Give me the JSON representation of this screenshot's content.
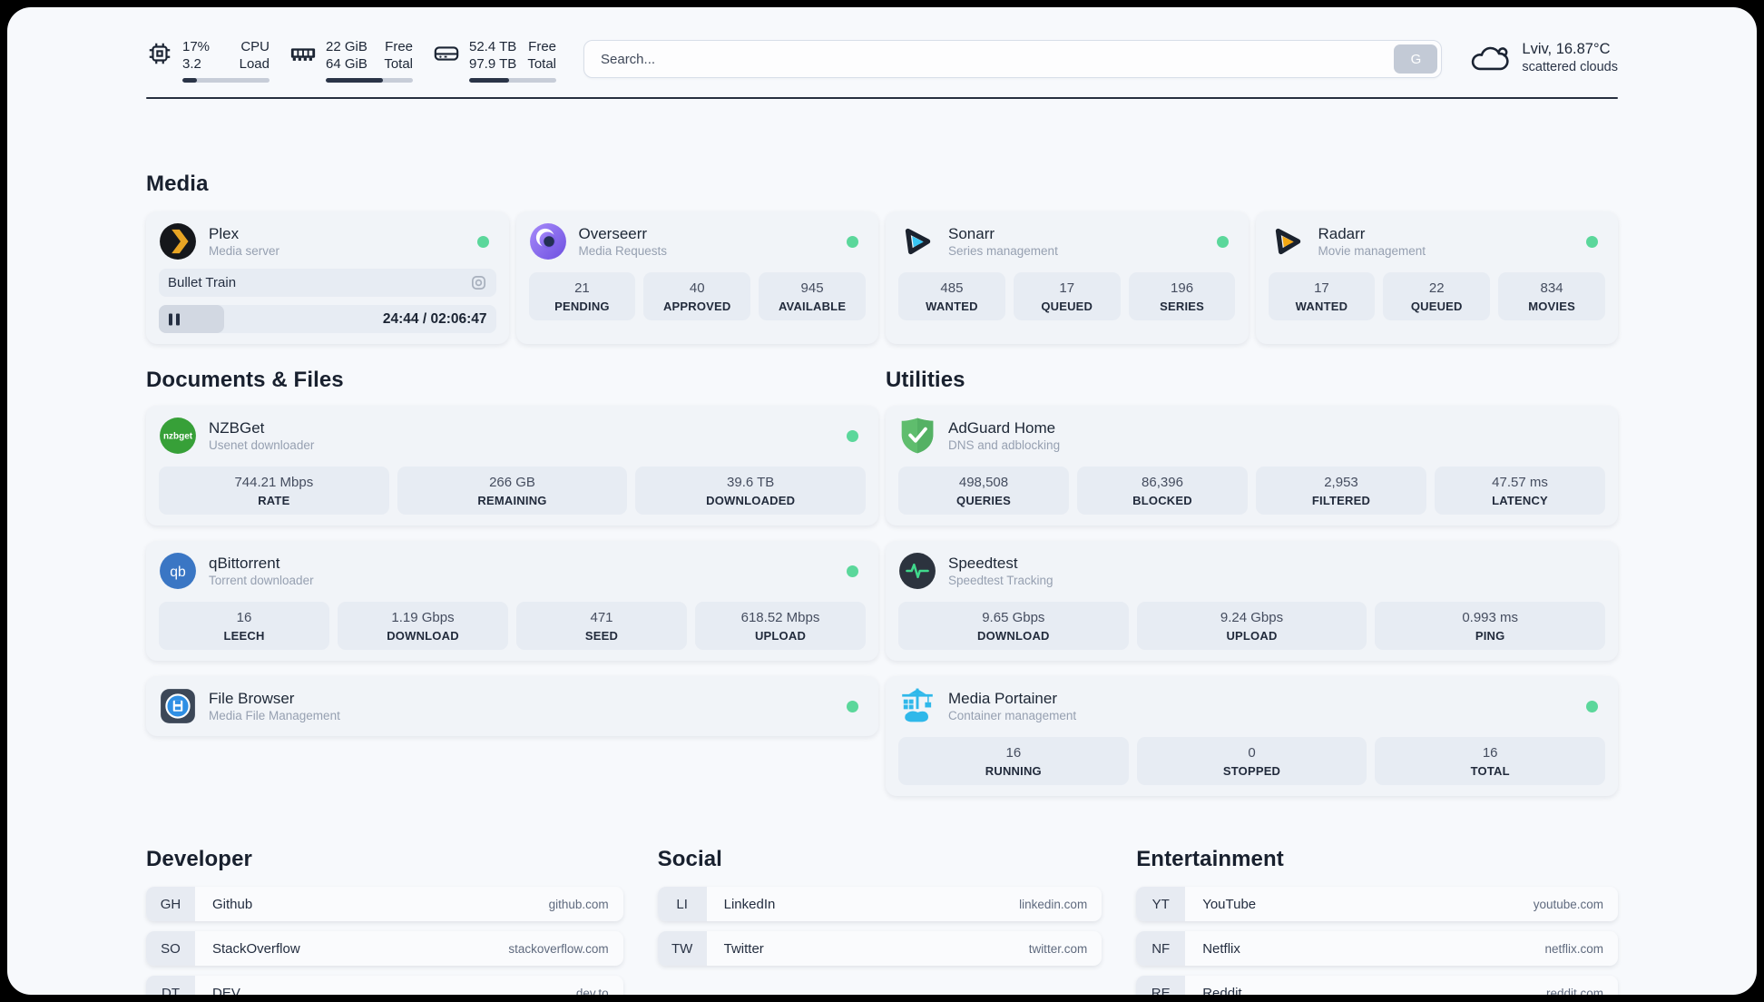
{
  "header": {
    "stats": [
      {
        "id": "cpu",
        "icon": "cpu-icon",
        "rows": [
          {
            "value": "17%",
            "label": "CPU"
          },
          {
            "value": "3.2",
            "label": "Load"
          }
        ],
        "percent": 17
      },
      {
        "id": "memory",
        "icon": "ram-icon",
        "rows": [
          {
            "value": "22 GiB",
            "label": "Free"
          },
          {
            "value": "64 GiB",
            "label": "Total"
          }
        ],
        "percent": 66
      },
      {
        "id": "storage",
        "icon": "disk-icon",
        "rows": [
          {
            "value": "52.4 TB",
            "label": "Free"
          },
          {
            "value": "97.9 TB",
            "label": "Total"
          }
        ],
        "percent": 46
      }
    ],
    "search": {
      "placeholder": "Search...",
      "button_label": "G"
    },
    "weather": {
      "location": "Lviv, 16.87°C",
      "condition": "scattered clouds"
    }
  },
  "sections": {
    "media": {
      "title": "Media",
      "apps": [
        {
          "name": "Plex",
          "subtitle": "Media server",
          "online": true,
          "now_playing": {
            "title": "Bullet Train",
            "time_display": "24:44 / 02:06:47",
            "progress_percent": 19.5
          }
        },
        {
          "name": "Overseerr",
          "subtitle": "Media Requests",
          "online": true,
          "stats": [
            {
              "value": "21",
              "label": "PENDING"
            },
            {
              "value": "40",
              "label": "APPROVED"
            },
            {
              "value": "945",
              "label": "AVAILABLE"
            }
          ]
        },
        {
          "name": "Sonarr",
          "subtitle": "Series management",
          "online": true,
          "stats": [
            {
              "value": "485",
              "label": "WANTED"
            },
            {
              "value": "17",
              "label": "QUEUED"
            },
            {
              "value": "196",
              "label": "SERIES"
            }
          ]
        },
        {
          "name": "Radarr",
          "subtitle": "Movie management",
          "online": true,
          "stats": [
            {
              "value": "17",
              "label": "WANTED"
            },
            {
              "value": "22",
              "label": "QUEUED"
            },
            {
              "value": "834",
              "label": "MOVIES"
            }
          ]
        }
      ]
    },
    "documents": {
      "title": "Documents & Files",
      "apps": [
        {
          "name": "NZBGet",
          "subtitle": "Usenet downloader",
          "online": true,
          "stats": [
            {
              "value": "744.21 Mbps",
              "label": "RATE"
            },
            {
              "value": "266 GB",
              "label": "REMAINING"
            },
            {
              "value": "39.6 TB",
              "label": "DOWNLOADED"
            }
          ]
        },
        {
          "name": "qBittorrent",
          "subtitle": "Torrent downloader",
          "online": true,
          "stats": [
            {
              "value": "16",
              "label": "LEECH"
            },
            {
              "value": "1.19 Gbps",
              "label": "DOWNLOAD"
            },
            {
              "value": "471",
              "label": "SEED"
            },
            {
              "value": "618.52 Mbps",
              "label": "UPLOAD"
            }
          ]
        },
        {
          "name": "File Browser",
          "subtitle": "Media File Management",
          "online": true,
          "stats": []
        }
      ]
    },
    "utilities": {
      "title": "Utilities",
      "apps": [
        {
          "name": "AdGuard Home",
          "subtitle": "DNS and adblocking",
          "online": null,
          "stats": [
            {
              "value": "498,508",
              "label": "QUERIES"
            },
            {
              "value": "86,396",
              "label": "BLOCKED"
            },
            {
              "value": "2,953",
              "label": "FILTERED"
            },
            {
              "value": "47.57 ms",
              "label": "LATENCY"
            }
          ]
        },
        {
          "name": "Speedtest",
          "subtitle": "Speedtest Tracking",
          "online": null,
          "stats": [
            {
              "value": "9.65 Gbps",
              "label": "DOWNLOAD"
            },
            {
              "value": "9.24 Gbps",
              "label": "UPLOAD"
            },
            {
              "value": "0.993 ms",
              "label": "PING"
            }
          ]
        },
        {
          "name": "Media Portainer",
          "subtitle": "Container management",
          "online": true,
          "stats": [
            {
              "value": "16",
              "label": "RUNNING"
            },
            {
              "value": "0",
              "label": "STOPPED"
            },
            {
              "value": "16",
              "label": "TOTAL"
            }
          ]
        }
      ]
    },
    "developer": {
      "title": "Developer",
      "links": [
        {
          "abbr": "GH",
          "name": "Github",
          "url": "github.com"
        },
        {
          "abbr": "SO",
          "name": "StackOverflow",
          "url": "stackoverflow.com"
        },
        {
          "abbr": "DT",
          "name": "DEV",
          "url": "dev.to"
        }
      ]
    },
    "social": {
      "title": "Social",
      "links": [
        {
          "abbr": "LI",
          "name": "LinkedIn",
          "url": "linkedin.com"
        },
        {
          "abbr": "TW",
          "name": "Twitter",
          "url": "twitter.com"
        }
      ]
    },
    "entertainment": {
      "title": "Entertainment",
      "links": [
        {
          "abbr": "YT",
          "name": "YouTube",
          "url": "youtube.com"
        },
        {
          "abbr": "NF",
          "name": "Netflix",
          "url": "netflix.com"
        },
        {
          "abbr": "RE",
          "name": "Reddit",
          "url": "reddit.com"
        }
      ]
    }
  },
  "colors": {
    "status_online": "#5bd79b",
    "plex_amber": "#e8a524",
    "overseerr_purple": "#7c6cf0",
    "sonarr_cyan": "#38c6f4",
    "radarr_amber": "#f3a712",
    "nzbget_green": "#37a038",
    "qbittorrent_blue": "#3a76c4",
    "filebrowser_blue": "#2f8fe4",
    "adguard_green": "#5fbd6d",
    "speedtest_pulse": "#40d98c",
    "portainer_blue": "#2fb8ea",
    "header_bar_fill": "#2a3447"
  }
}
